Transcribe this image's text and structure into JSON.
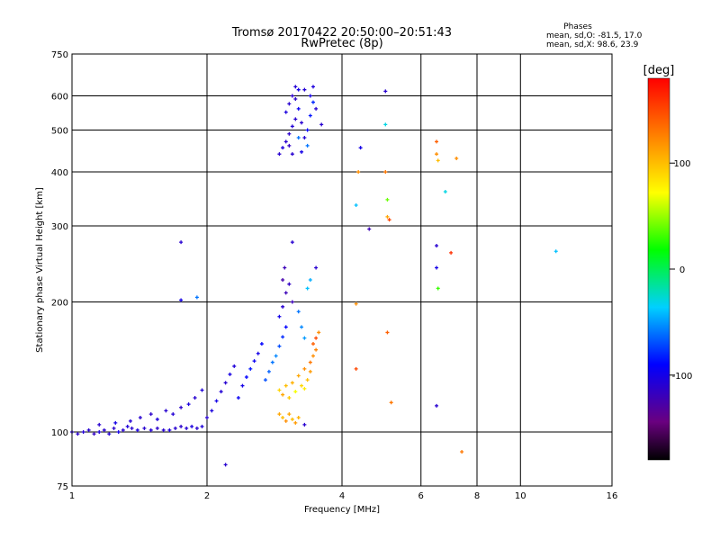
{
  "chart_data": {
    "type": "scatter",
    "title": "Tromsø 20170422 20:50:00–20:51:43",
    "subtitle": "RwPretec (8p)",
    "xlabel": "Frequency [MHz]",
    "ylabel": "Stationary phase Virtual Height [km]",
    "xscale": "log2",
    "yscale": "log",
    "xlim": [
      1,
      16
    ],
    "ylim": [
      75,
      750
    ],
    "x_ticks": [
      1,
      2,
      4,
      6,
      8,
      10,
      16
    ],
    "x_tick_labels": [
      "1",
      "2",
      "4",
      "6",
      "8",
      "10",
      "16"
    ],
    "y_ticks": [
      75,
      100,
      200,
      300,
      400,
      500,
      600,
      750
    ],
    "y_tick_labels": [
      "75",
      "100",
      "200",
      "300",
      "400",
      "500",
      "600",
      "750"
    ],
    "grid": true,
    "stats": {
      "heading": "Phases",
      "line1": "mean, sd,O: -81.5, 17.0",
      "line2": "mean, sd,X:  98.6, 23.9"
    },
    "colorbar": {
      "label": "[deg]",
      "min": -180,
      "max": 180,
      "ticks": [
        100,
        0,
        -100
      ],
      "tick_labels": [
        "100",
        "0",
        "-100"
      ]
    },
    "points": [
      {
        "f": 1.0,
        "h": 100,
        "p": -110
      },
      {
        "f": 1.03,
        "h": 99,
        "p": -112
      },
      {
        "f": 1.06,
        "h": 100,
        "p": -108
      },
      {
        "f": 1.09,
        "h": 101,
        "p": -110
      },
      {
        "f": 1.12,
        "h": 99,
        "p": -115
      },
      {
        "f": 1.15,
        "h": 100,
        "p": -105
      },
      {
        "f": 1.18,
        "h": 101,
        "p": -110
      },
      {
        "f": 1.21,
        "h": 99,
        "p": -108
      },
      {
        "f": 1.24,
        "h": 102,
        "p": -112
      },
      {
        "f": 1.27,
        "h": 100,
        "p": -100
      },
      {
        "f": 1.3,
        "h": 101,
        "p": -110
      },
      {
        "f": 1.33,
        "h": 103,
        "p": -106
      },
      {
        "f": 1.36,
        "h": 102,
        "p": -110
      },
      {
        "f": 1.4,
        "h": 101,
        "p": -104
      },
      {
        "f": 1.45,
        "h": 102,
        "p": -110
      },
      {
        "f": 1.5,
        "h": 101,
        "p": -108
      },
      {
        "f": 1.55,
        "h": 102,
        "p": -112
      },
      {
        "f": 1.6,
        "h": 101,
        "p": -110
      },
      {
        "f": 1.65,
        "h": 101,
        "p": -106
      },
      {
        "f": 1.7,
        "h": 102,
        "p": -110
      },
      {
        "f": 1.75,
        "h": 103,
        "p": -112
      },
      {
        "f": 1.8,
        "h": 102,
        "p": -108
      },
      {
        "f": 1.85,
        "h": 103,
        "p": -104
      },
      {
        "f": 1.9,
        "h": 102,
        "p": -110
      },
      {
        "f": 1.95,
        "h": 103,
        "p": -106
      },
      {
        "f": 1.15,
        "h": 104,
        "p": -110
      },
      {
        "f": 1.25,
        "h": 105,
        "p": -100
      },
      {
        "f": 1.35,
        "h": 106,
        "p": -108
      },
      {
        "f": 1.42,
        "h": 108,
        "p": -110
      },
      {
        "f": 1.5,
        "h": 110,
        "p": -112
      },
      {
        "f": 1.55,
        "h": 107,
        "p": -105
      },
      {
        "f": 1.62,
        "h": 112,
        "p": -110
      },
      {
        "f": 1.68,
        "h": 110,
        "p": -108
      },
      {
        "f": 1.75,
        "h": 114,
        "p": -112
      },
      {
        "f": 1.82,
        "h": 116,
        "p": -104
      },
      {
        "f": 1.88,
        "h": 120,
        "p": -110
      },
      {
        "f": 1.95,
        "h": 125,
        "p": -106
      },
      {
        "f": 2.0,
        "h": 108,
        "p": -110
      },
      {
        "f": 2.05,
        "h": 112,
        "p": -104
      },
      {
        "f": 2.1,
        "h": 118,
        "p": -100
      },
      {
        "f": 2.15,
        "h": 124,
        "p": -108
      },
      {
        "f": 2.2,
        "h": 130,
        "p": -110
      },
      {
        "f": 2.25,
        "h": 136,
        "p": -102
      },
      {
        "f": 2.3,
        "h": 142,
        "p": -106
      },
      {
        "f": 2.35,
        "h": 120,
        "p": -95
      },
      {
        "f": 2.4,
        "h": 128,
        "p": -100
      },
      {
        "f": 2.45,
        "h": 134,
        "p": -90
      },
      {
        "f": 2.5,
        "h": 140,
        "p": -85
      },
      {
        "f": 2.55,
        "h": 146,
        "p": -95
      },
      {
        "f": 2.6,
        "h": 152,
        "p": -100
      },
      {
        "f": 2.65,
        "h": 160,
        "p": -90
      },
      {
        "f": 2.7,
        "h": 132,
        "p": -70
      },
      {
        "f": 2.75,
        "h": 138,
        "p": -65
      },
      {
        "f": 2.8,
        "h": 145,
        "p": -60
      },
      {
        "f": 2.85,
        "h": 150,
        "p": -55
      },
      {
        "f": 2.9,
        "h": 158,
        "p": -70
      },
      {
        "f": 2.95,
        "h": 166,
        "p": -80
      },
      {
        "f": 3.0,
        "h": 175,
        "p": -90
      },
      {
        "f": 2.9,
        "h": 185,
        "p": -100
      },
      {
        "f": 2.95,
        "h": 195,
        "p": -110
      },
      {
        "f": 3.0,
        "h": 210,
        "p": -120
      },
      {
        "f": 2.95,
        "h": 225,
        "p": -125
      },
      {
        "f": 2.98,
        "h": 240,
        "p": -120
      },
      {
        "f": 3.05,
        "h": 220,
        "p": -115
      },
      {
        "f": 3.1,
        "h": 200,
        "p": -120
      },
      {
        "f": 3.2,
        "h": 190,
        "p": -60
      },
      {
        "f": 3.25,
        "h": 175,
        "p": -55
      },
      {
        "f": 3.3,
        "h": 165,
        "p": -50
      },
      {
        "f": 3.35,
        "h": 215,
        "p": -40
      },
      {
        "f": 3.4,
        "h": 225,
        "p": -45
      },
      {
        "f": 3.5,
        "h": 240,
        "p": -110
      },
      {
        "f": 2.9,
        "h": 125,
        "p": 90
      },
      {
        "f": 2.95,
        "h": 122,
        "p": 110
      },
      {
        "f": 3.0,
        "h": 128,
        "p": 100
      },
      {
        "f": 3.05,
        "h": 120,
        "p": 95
      },
      {
        "f": 3.1,
        "h": 130,
        "p": 105
      },
      {
        "f": 3.15,
        "h": 124,
        "p": 70
      },
      {
        "f": 3.2,
        "h": 135,
        "p": 110
      },
      {
        "f": 3.25,
        "h": 128,
        "p": 90
      },
      {
        "f": 3.3,
        "h": 140,
        "p": 120
      },
      {
        "f": 3.35,
        "h": 132,
        "p": 100
      },
      {
        "f": 3.4,
        "h": 145,
        "p": 130
      },
      {
        "f": 3.45,
        "h": 150,
        "p": 120
      },
      {
        "f": 3.45,
        "h": 160,
        "p": 140
      },
      {
        "f": 3.5,
        "h": 165,
        "p": 150
      },
      {
        "f": 3.55,
        "h": 170,
        "p": 120
      },
      {
        "f": 3.5,
        "h": 155,
        "p": 125
      },
      {
        "f": 3.4,
        "h": 138,
        "p": 115
      },
      {
        "f": 3.3,
        "h": 126,
        "p": 80
      },
      {
        "f": 2.9,
        "h": 110,
        "p": 110
      },
      {
        "f": 2.95,
        "h": 108,
        "p": 100
      },
      {
        "f": 3.0,
        "h": 106,
        "p": 120
      },
      {
        "f": 3.05,
        "h": 110,
        "p": 110
      },
      {
        "f": 3.1,
        "h": 107,
        "p": 100
      },
      {
        "f": 3.15,
        "h": 105,
        "p": 115
      },
      {
        "f": 3.2,
        "h": 108,
        "p": 105
      },
      {
        "f": 2.9,
        "h": 440,
        "p": -110
      },
      {
        "f": 2.95,
        "h": 455,
        "p": -105
      },
      {
        "f": 3.0,
        "h": 470,
        "p": -110
      },
      {
        "f": 3.05,
        "h": 490,
        "p": -112
      },
      {
        "f": 3.1,
        "h": 510,
        "p": -108
      },
      {
        "f": 3.15,
        "h": 530,
        "p": -110
      },
      {
        "f": 3.0,
        "h": 550,
        "p": -104
      },
      {
        "f": 3.05,
        "h": 575,
        "p": -110
      },
      {
        "f": 3.1,
        "h": 600,
        "p": -112
      },
      {
        "f": 3.15,
        "h": 630,
        "p": -108
      },
      {
        "f": 3.2,
        "h": 620,
        "p": -100
      },
      {
        "f": 3.2,
        "h": 560,
        "p": -95
      },
      {
        "f": 3.25,
        "h": 520,
        "p": -110
      },
      {
        "f": 3.3,
        "h": 480,
        "p": -108
      },
      {
        "f": 3.35,
        "h": 500,
        "p": -90
      },
      {
        "f": 3.4,
        "h": 540,
        "p": -85
      },
      {
        "f": 3.4,
        "h": 600,
        "p": -100
      },
      {
        "f": 3.45,
        "h": 580,
        "p": -80
      },
      {
        "f": 3.5,
        "h": 560,
        "p": -110
      },
      {
        "f": 3.45,
        "h": 630,
        "p": -105
      },
      {
        "f": 3.35,
        "h": 460,
        "p": -60
      },
      {
        "f": 3.25,
        "h": 445,
        "p": -100
      },
      {
        "f": 3.1,
        "h": 440,
        "p": -110
      },
      {
        "f": 3.05,
        "h": 460,
        "p": -115
      },
      {
        "f": 3.3,
        "h": 620,
        "p": -108
      },
      {
        "f": 3.15,
        "h": 590,
        "p": -112
      },
      {
        "f": 3.2,
        "h": 480,
        "p": -60
      },
      {
        "f": 3.6,
        "h": 515,
        "p": -110
      },
      {
        "f": 1.75,
        "h": 275,
        "p": -110
      },
      {
        "f": 1.75,
        "h": 202,
        "p": -100
      },
      {
        "f": 1.9,
        "h": 205,
        "p": -60
      },
      {
        "f": 3.1,
        "h": 275,
        "p": -110
      },
      {
        "f": 2.2,
        "h": 84,
        "p": -110
      },
      {
        "f": 3.3,
        "h": 104,
        "p": -110
      },
      {
        "f": 4.3,
        "h": 198,
        "p": 120
      },
      {
        "f": 4.3,
        "h": 140,
        "p": 150
      },
      {
        "f": 4.3,
        "h": 335,
        "p": -40
      },
      {
        "f": 4.35,
        "h": 400,
        "p": 120
      },
      {
        "f": 4.4,
        "h": 455,
        "p": -100
      },
      {
        "f": 4.6,
        "h": 295,
        "p": -120
      },
      {
        "f": 5.0,
        "h": 615,
        "p": -110
      },
      {
        "f": 5.0,
        "h": 515,
        "p": -30
      },
      {
        "f": 5.0,
        "h": 400,
        "p": 130
      },
      {
        "f": 5.05,
        "h": 345,
        "p": 40
      },
      {
        "f": 5.05,
        "h": 315,
        "p": 110
      },
      {
        "f": 5.1,
        "h": 310,
        "p": 150
      },
      {
        "f": 5.05,
        "h": 170,
        "p": 140
      },
      {
        "f": 5.15,
        "h": 117,
        "p": 130
      },
      {
        "f": 6.5,
        "h": 470,
        "p": 140
      },
      {
        "f": 6.5,
        "h": 440,
        "p": 120
      },
      {
        "f": 6.55,
        "h": 425,
        "p": 100
      },
      {
        "f": 6.5,
        "h": 270,
        "p": -110
      },
      {
        "f": 6.5,
        "h": 240,
        "p": -100
      },
      {
        "f": 6.55,
        "h": 215,
        "p": 30
      },
      {
        "f": 6.5,
        "h": 115,
        "p": -110
      },
      {
        "f": 6.8,
        "h": 360,
        "p": -30
      },
      {
        "f": 7.0,
        "h": 260,
        "p": 160
      },
      {
        "f": 7.2,
        "h": 430,
        "p": 120
      },
      {
        "f": 7.4,
        "h": 90,
        "p": 130
      },
      {
        "f": 12.0,
        "h": 262,
        "p": -40
      }
    ]
  }
}
